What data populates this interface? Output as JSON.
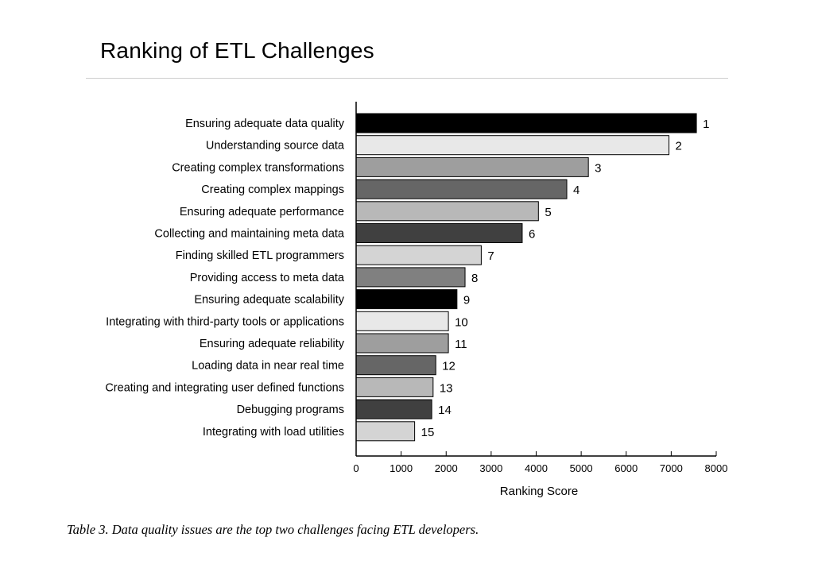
{
  "title": "Ranking of ETL Challenges",
  "caption": {
    "prefix": "Table 3.",
    "text": " Data quality issues are the top two challenges facing ETL developers."
  },
  "chart_data": {
    "type": "bar",
    "orientation": "horizontal",
    "title": "Ranking of ETL Challenges",
    "xlabel": "Ranking Score",
    "ylabel": "",
    "xlim": [
      0,
      8000
    ],
    "xticks": [
      0,
      1000,
      2000,
      3000,
      4000,
      5000,
      6000,
      7000,
      8000
    ],
    "grid": false,
    "categories": [
      "Ensuring adequate data quality",
      "Understanding source data",
      "Creating complex transformations",
      "Creating complex mappings",
      "Ensuring adequate performance",
      "Collecting and maintaining meta data",
      "Finding skilled ETL programmers",
      "Providing access to meta data",
      "Ensuring adequate scalability",
      "Integrating with third-party tools or applications",
      "Ensuring adequate reliability",
      "Loading data in near real time",
      "Creating and integrating user defined functions",
      "Debugging programs",
      "Integrating with load utilities"
    ],
    "values": [
      7560,
      6950,
      5160,
      4680,
      4050,
      3690,
      2780,
      2420,
      2240,
      2050,
      2050,
      1770,
      1710,
      1680,
      1300
    ],
    "rank_labels": [
      "1",
      "2",
      "3",
      "4",
      "5",
      "6",
      "7",
      "8",
      "9",
      "10",
      "11",
      "12",
      "13",
      "14",
      "15"
    ],
    "colors": [
      "#000000",
      "#e8e8e8",
      "#9e9e9e",
      "#666666",
      "#b8b8b8",
      "#404040",
      "#d4d4d4",
      "#808080",
      "#000000",
      "#e8e8e8",
      "#9e9e9e",
      "#666666",
      "#b8b8b8",
      "#404040",
      "#d4d4d4"
    ]
  }
}
